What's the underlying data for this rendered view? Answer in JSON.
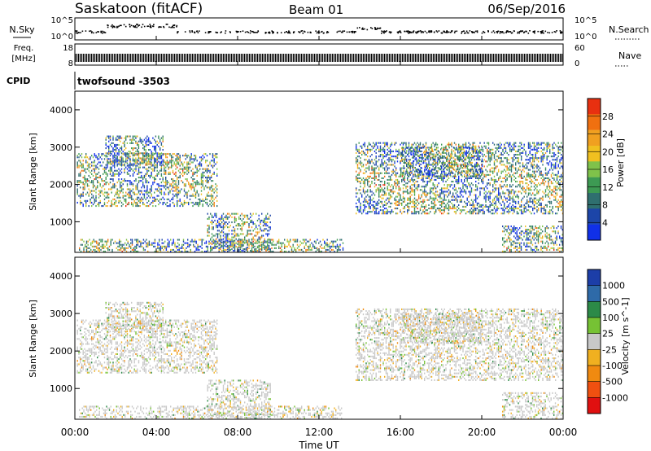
{
  "header": {
    "site": "Saskatoon (fitACF)",
    "beam": "Beam 01",
    "date": "06/Sep/2016"
  },
  "top_panels": {
    "nsky_label": "N.Sky",
    "nsky_ticks": [
      "10^5",
      "10^0"
    ],
    "nsearch_label": "N.Search",
    "nsearch_ticks": [
      "10^5",
      "10^0"
    ],
    "freq_label": "Freq.",
    "freq_unit": "[MHz]",
    "freq_ticks": [
      "18",
      "8"
    ],
    "nave_label": "Nave",
    "nave_ticks": [
      "60",
      "0"
    ],
    "cpid_label": "CPID",
    "cpid_value": "twofsound -3503"
  },
  "x_axis": {
    "label": "Time UT",
    "ticks": [
      "00:00",
      "04:00",
      "08:00",
      "12:00",
      "16:00",
      "20:00",
      "00:00"
    ]
  },
  "colors": {
    "power_scale": [
      "#1030e8",
      "#1c45a8",
      "#2f6f6f",
      "#3d9a53",
      "#7fc24a",
      "#f0c020",
      "#f0a020",
      "#f07010",
      "#e83010"
    ],
    "velocity_scale": [
      "#1c3ea8",
      "#2e6aa8",
      "#2c8a48",
      "#76c234",
      "#c8c8c8",
      "#f0b020",
      "#f08a10",
      "#f05010",
      "#e01010"
    ]
  },
  "chart_data": [
    {
      "type": "heatmap",
      "title": "",
      "xlabel": "",
      "ylabel": "Slant Range [km]",
      "yticks": [
        "1000",
        "2000",
        "3000",
        "4000"
      ],
      "ylim": [
        180,
        4500
      ],
      "colorbar_label": "Power [dB]",
      "colorbar_ticks": [
        "4",
        "8",
        "12",
        "16",
        "20",
        "24",
        "28"
      ],
      "colorbar_range": [
        0,
        30
      ],
      "regions": [
        {
          "t0": 0.1,
          "t1": 7.0,
          "r0": 1400,
          "r1": 2800
        },
        {
          "t0": 1.5,
          "t1": 4.3,
          "r0": 2500,
          "r1": 3300
        },
        {
          "t0": 6.5,
          "t1": 9.6,
          "r0": 200,
          "r1": 1200
        },
        {
          "t0": 0.2,
          "t1": 13.2,
          "r0": 180,
          "r1": 500
        },
        {
          "t0": 13.8,
          "t1": 24.0,
          "r0": 1200,
          "r1": 3100
        },
        {
          "t0": 16.0,
          "t1": 20.0,
          "r0": 2200,
          "r1": 3000
        },
        {
          "t0": 21.0,
          "t1": 24.0,
          "r0": 180,
          "r1": 900
        }
      ]
    },
    {
      "type": "heatmap",
      "title": "",
      "xlabel": "Time UT",
      "ylabel": "Slant Range [km]",
      "yticks": [
        "1000",
        "2000",
        "3000",
        "4000"
      ],
      "ylim": [
        180,
        4500
      ],
      "colorbar_label": "Velocity [m s^-1]",
      "colorbar_ticks": [
        "1000",
        "500",
        "100",
        "25",
        "-25",
        "-100",
        "-500",
        "-1000"
      ],
      "regions": [
        {
          "t0": 0.1,
          "t1": 7.0,
          "r0": 1400,
          "r1": 2800
        },
        {
          "t0": 1.5,
          "t1": 4.3,
          "r0": 2500,
          "r1": 3300
        },
        {
          "t0": 6.5,
          "t1": 9.6,
          "r0": 200,
          "r1": 1200
        },
        {
          "t0": 0.2,
          "t1": 13.2,
          "r0": 180,
          "r1": 500
        },
        {
          "t0": 13.8,
          "t1": 24.0,
          "r0": 1200,
          "r1": 3100
        },
        {
          "t0": 16.0,
          "t1": 20.0,
          "r0": 2200,
          "r1": 3000
        },
        {
          "t0": 21.0,
          "t1": 24.0,
          "r0": 180,
          "r1": 900
        }
      ]
    }
  ]
}
